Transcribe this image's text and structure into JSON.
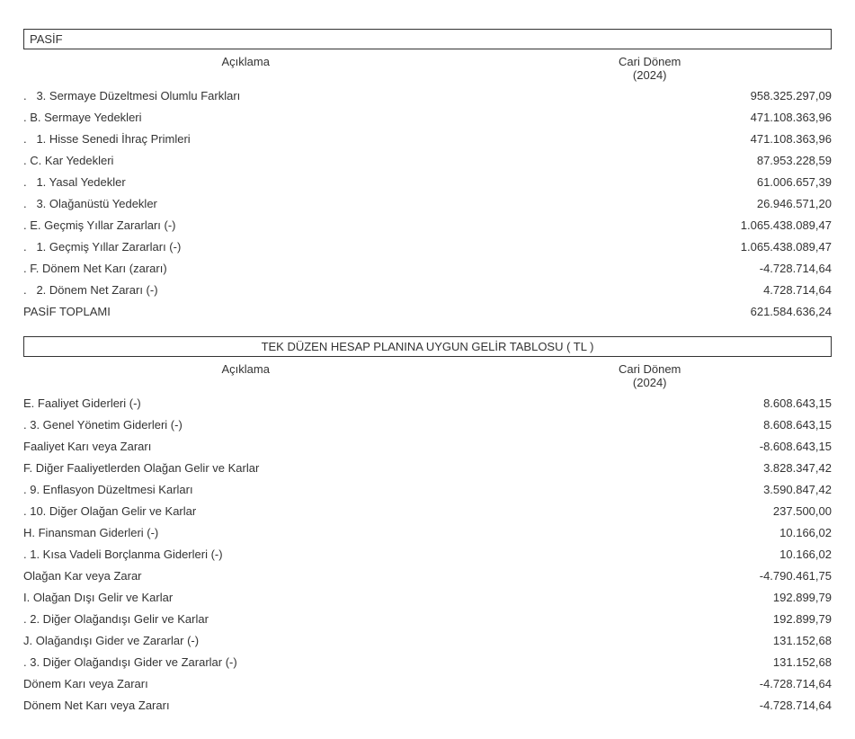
{
  "colors": {
    "text": "#333333",
    "border": "#333333",
    "background": "#ffffff"
  },
  "typography": {
    "font_family": "Arial, Helvetica, sans-serif",
    "base_fontsize_pt": 10
  },
  "section1": {
    "title": "PASİF",
    "columns": {
      "desc": "Açıklama",
      "period": "Cari Dönem",
      "year": "(2024)"
    },
    "rows": [
      {
        "desc": ".   3. Sermaye Düzeltmesi Olumlu Farkları",
        "val": "958.325.297,09"
      },
      {
        "desc": ". B. Sermaye Yedekleri",
        "val": "471.108.363,96"
      },
      {
        "desc": ".   1. Hisse Senedi İhraç Primleri",
        "val": "471.108.363,96"
      },
      {
        "desc": ". C. Kar Yedekleri",
        "val": "87.953.228,59"
      },
      {
        "desc": ".   1. Yasal Yedekler",
        "val": "61.006.657,39"
      },
      {
        "desc": ".   3. Olağanüstü Yedekler",
        "val": "26.946.571,20"
      },
      {
        "desc": ". E. Geçmiş Yıllar Zararları (-)",
        "val": "1.065.438.089,47"
      },
      {
        "desc": ".   1. Geçmiş Yıllar Zararları (-)",
        "val": "1.065.438.089,47"
      },
      {
        "desc": ". F. Dönem Net Karı (zararı)",
        "val": "-4.728.714,64"
      },
      {
        "desc": ".   2. Dönem Net Zararı (-)",
        "val": "4.728.714,64"
      },
      {
        "desc": "PASİF TOPLAMI",
        "val": "621.584.636,24"
      }
    ]
  },
  "section2": {
    "title": "TEK DÜZEN HESAP PLANINA UYGUN GELİR TABLOSU  ( TL )",
    "columns": {
      "desc": "Açıklama",
      "period": "Cari Dönem",
      "year": "(2024)"
    },
    "rows": [
      {
        "desc": "E. Faaliyet Giderleri (-)",
        "val": "8.608.643,15"
      },
      {
        "desc": ". 3. Genel Yönetim Giderleri (-)",
        "val": "8.608.643,15"
      },
      {
        "desc": "Faaliyet Karı veya Zararı",
        "val": "-8.608.643,15"
      },
      {
        "desc": "F. Diğer Faaliyetlerden Olağan Gelir ve Karlar",
        "val": "3.828.347,42"
      },
      {
        "desc": ". 9. Enflasyon Düzeltmesi Karları",
        "val": "3.590.847,42"
      },
      {
        "desc": ". 10. Diğer Olağan Gelir ve Karlar",
        "val": "237.500,00"
      },
      {
        "desc": "H. Finansman Giderleri (-)",
        "val": "10.166,02"
      },
      {
        "desc": ". 1. Kısa Vadeli Borçlanma Giderleri (-)",
        "val": "10.166,02"
      },
      {
        "desc": "Olağan Kar veya Zarar",
        "val": "-4.790.461,75"
      },
      {
        "desc": "I. Olağan Dışı Gelir ve Karlar",
        "val": "192.899,79"
      },
      {
        "desc": ". 2. Diğer Olağandışı Gelir ve Karlar",
        "val": "192.899,79"
      },
      {
        "desc": "J. Olağandışı Gider ve Zararlar (-)",
        "val": "131.152,68"
      },
      {
        "desc": ". 3. Diğer Olağandışı Gider ve Zararlar (-)",
        "val": "131.152,68"
      },
      {
        "desc": "Dönem Karı veya Zararı",
        "val": "-4.728.714,64"
      },
      {
        "desc": "Dönem Net Karı veya Zararı",
        "val": "-4.728.714,64"
      }
    ]
  }
}
